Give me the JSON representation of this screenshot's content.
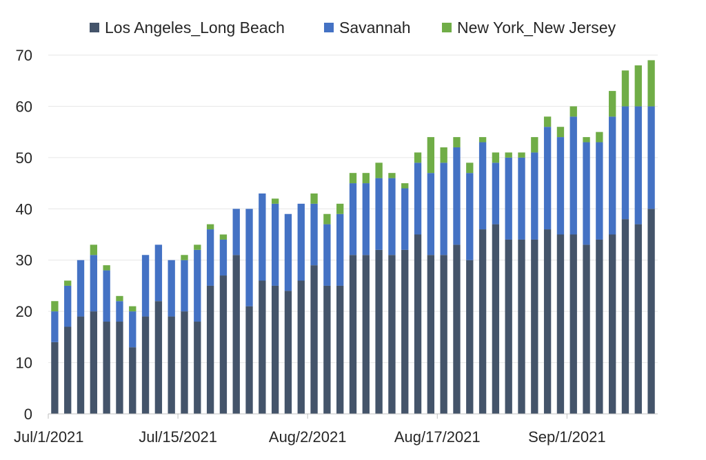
{
  "chart_data": {
    "type": "bar",
    "stacked": true,
    "title": "",
    "xlabel": "",
    "ylabel": "",
    "ylim": [
      0,
      70
    ],
    "yticks": [
      0,
      10,
      20,
      30,
      40,
      50,
      60,
      70
    ],
    "grid": true,
    "legend_position": "top",
    "x_tick_labels": [
      {
        "index": 0,
        "label": "Jul/1/2021"
      },
      {
        "index": 10,
        "label": "Jul/15/2021"
      },
      {
        "index": 20,
        "label": "Aug/2/2021"
      },
      {
        "index": 30,
        "label": "Aug/17/2021"
      },
      {
        "index": 40,
        "label": "Sep/1/2021"
      }
    ],
    "series": [
      {
        "name": "Los Angeles_Long Beach",
        "color": "#44546a",
        "values": [
          14,
          17,
          19,
          20,
          18,
          18,
          13,
          19,
          22,
          19,
          20,
          18,
          25,
          27,
          31,
          21,
          26,
          25,
          24,
          26,
          29,
          25,
          25,
          31,
          31,
          32,
          31,
          32,
          35,
          31,
          31,
          33,
          30,
          36,
          37,
          34,
          34,
          34,
          36,
          35,
          35,
          33,
          34,
          35,
          38,
          37,
          40
        ]
      },
      {
        "name": "Savannah",
        "color": "#4472c4",
        "values": [
          6,
          8,
          11,
          11,
          10,
          4,
          7,
          12,
          11,
          11,
          10,
          14,
          11,
          7,
          9,
          19,
          17,
          16,
          15,
          15,
          12,
          12,
          14,
          14,
          14,
          14,
          15,
          12,
          14,
          16,
          18,
          19,
          17,
          17,
          12,
          16,
          16,
          17,
          20,
          19,
          23,
          20,
          19,
          23,
          22,
          23,
          20
        ]
      },
      {
        "name": "New York_New Jersey",
        "color": "#70ad47",
        "values": [
          2,
          1,
          0,
          2,
          1,
          1,
          1,
          0,
          0,
          0,
          1,
          1,
          1,
          1,
          0,
          0,
          0,
          1,
          0,
          0,
          2,
          2,
          2,
          2,
          2,
          3,
          1,
          1,
          2,
          7,
          3,
          2,
          2,
          1,
          2,
          1,
          1,
          3,
          2,
          2,
          2,
          1,
          2,
          5,
          7,
          8,
          9
        ]
      }
    ]
  }
}
